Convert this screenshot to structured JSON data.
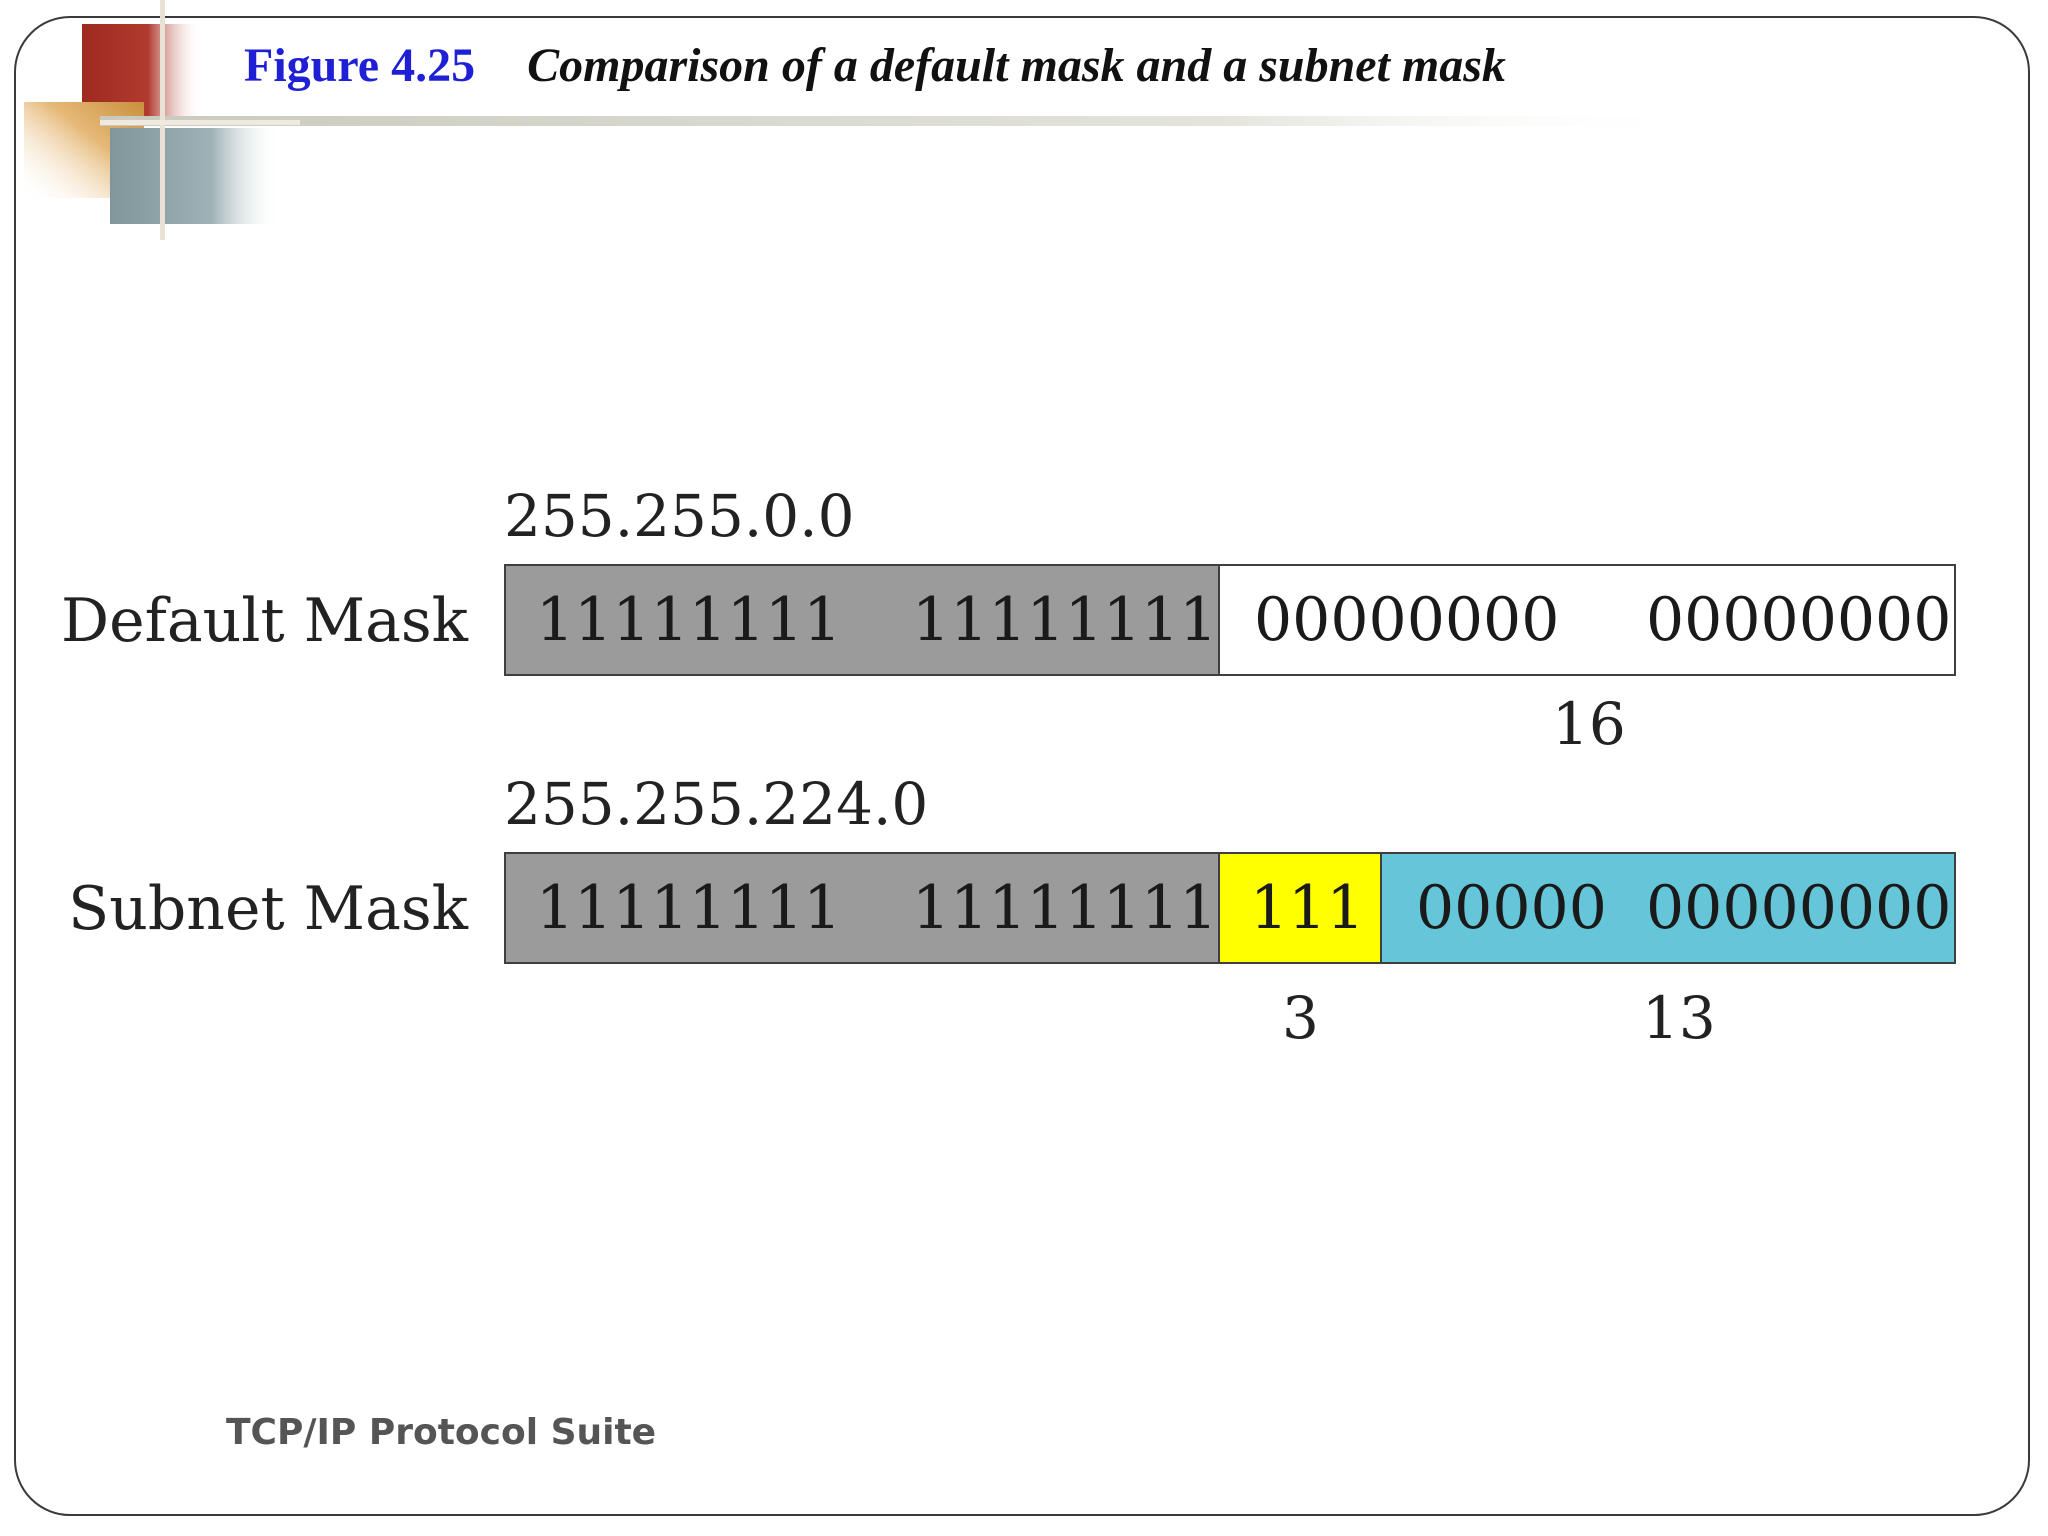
{
  "title": {
    "number": "Figure 4.25",
    "text": "Comparison of a default mask and a subnet mask"
  },
  "diagram": {
    "default_mask": {
      "label": "Default Mask",
      "dotted": "255.255.0.0",
      "octet1": "11111111",
      "octet2": "11111111",
      "octet3": "00000000",
      "octet4": "00000000",
      "host_bits_label": "16",
      "colors": {
        "network": "#9b9b9b",
        "host": "#ffffff"
      }
    },
    "subnet_mask": {
      "label": "Subnet Mask",
      "dotted": "255.255.224.0",
      "octet1": "11111111",
      "octet2": "11111111",
      "subnet_bits": "111",
      "host_part_a": "00000",
      "host_part_b": "00000000",
      "subnet_bits_label": "3",
      "host_bits_label": "13",
      "colors": {
        "network": "#9b9b9b",
        "subnet": "#ffff00",
        "host": "#66c6d9"
      }
    }
  },
  "footer": {
    "text": "TCP/IP Protocol Suite"
  },
  "theme": {
    "accent_red": "#9e2a20",
    "accent_tan": "#d6a45c",
    "accent_slate": "#8a9ea3"
  }
}
